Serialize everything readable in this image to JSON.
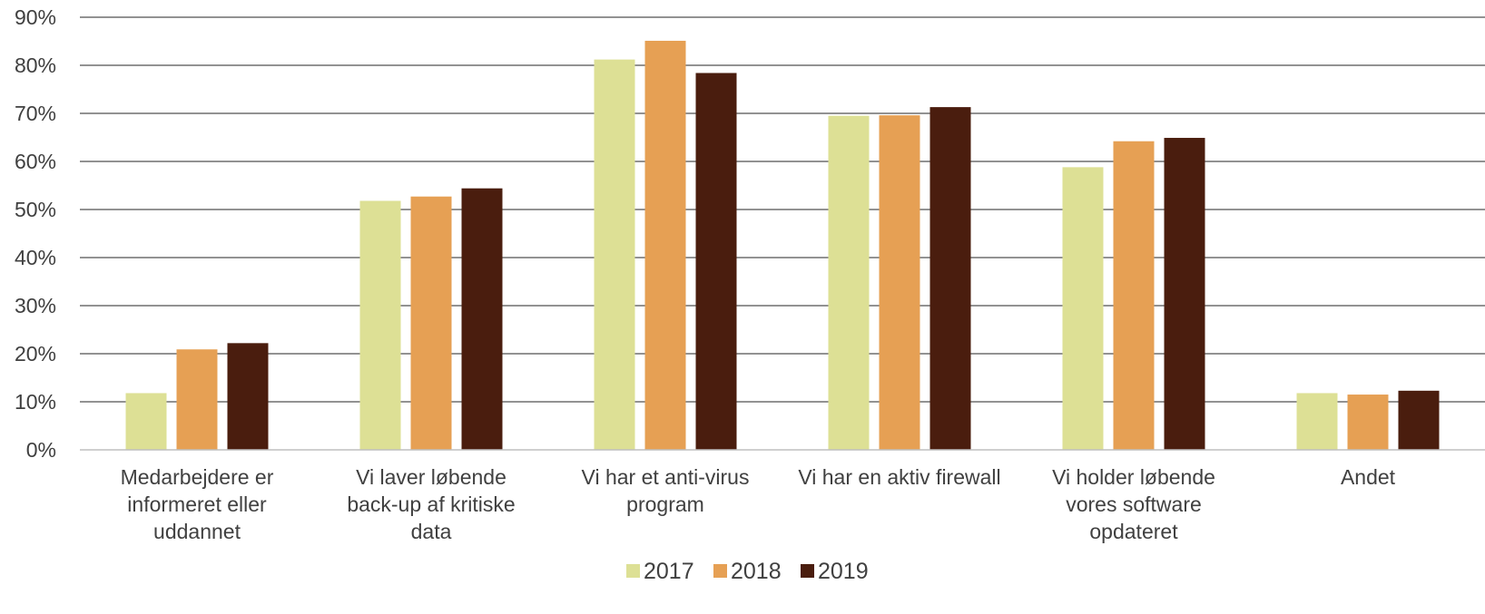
{
  "chart_data": {
    "type": "bar",
    "categories": [
      [
        "Medarbejdere er",
        "informeret eller",
        "uddannet"
      ],
      [
        "Vi laver løbende",
        "back-up af kritiske",
        "data"
      ],
      [
        "Vi har et anti-virus",
        "program"
      ],
      [
        "Vi har en aktiv firewall"
      ],
      [
        "Vi holder løbende",
        "vores software",
        "opdateret"
      ],
      [
        "Andet"
      ]
    ],
    "series": [
      {
        "name": "2017",
        "color": "#dde095",
        "values": [
          11.8,
          51.8,
          81.2,
          69.5,
          58.8,
          11.8
        ]
      },
      {
        "name": "2018",
        "color": "#e6a054",
        "values": [
          20.9,
          52.7,
          85.1,
          69.6,
          64.2,
          11.5
        ]
      },
      {
        "name": "2019",
        "color": "#4a1d0e",
        "values": [
          22.2,
          54.4,
          78.4,
          71.3,
          64.9,
          12.3
        ]
      }
    ],
    "y_ticks": [
      "0%",
      "10%",
      "20%",
      "30%",
      "40%",
      "50%",
      "60%",
      "70%",
      "80%",
      "90%"
    ],
    "ylim": [
      0,
      90
    ],
    "grid": true,
    "legend": "bottom-center"
  }
}
